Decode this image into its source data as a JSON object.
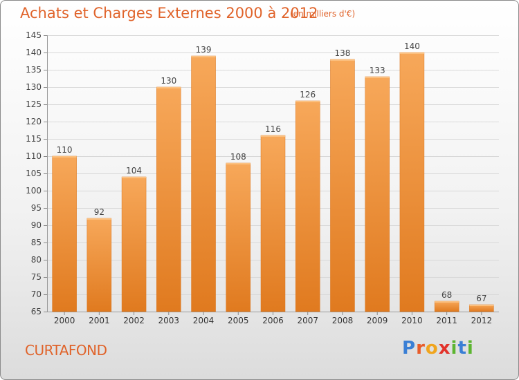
{
  "header": {
    "title": "Achats et Charges Externes 2000 à 2012",
    "unit": "(en milliers d'€)"
  },
  "footer": {
    "commune": "CURTAFOND",
    "logo": [
      "P",
      "r",
      "o",
      "x",
      "i",
      "t",
      "i"
    ]
  },
  "colors": {
    "accent": "#e0632a",
    "bar_top": "#f7a85a",
    "bar_bottom": "#e07a1f",
    "logo": [
      "#3a7fd5",
      "#e85c2a",
      "#f0a51e",
      "#e2332b",
      "#5cb531",
      "#3a7fd5",
      "#5cb531"
    ]
  },
  "chart_data": {
    "type": "bar",
    "categories": [
      "2000",
      "2001",
      "2002",
      "2003",
      "2004",
      "2005",
      "2006",
      "2007",
      "2008",
      "2009",
      "2010",
      "2011",
      "2012"
    ],
    "values": [
      110,
      92,
      104,
      130,
      139,
      108,
      116,
      126,
      138,
      133,
      140,
      68,
      67
    ],
    "title": "Achats et Charges Externes 2000 à 2012",
    "ylim": [
      65,
      145
    ],
    "yticks": [
      65,
      70,
      75,
      80,
      85,
      90,
      95,
      100,
      105,
      110,
      115,
      120,
      125,
      130,
      135,
      140,
      145
    ],
    "grid": true
  }
}
